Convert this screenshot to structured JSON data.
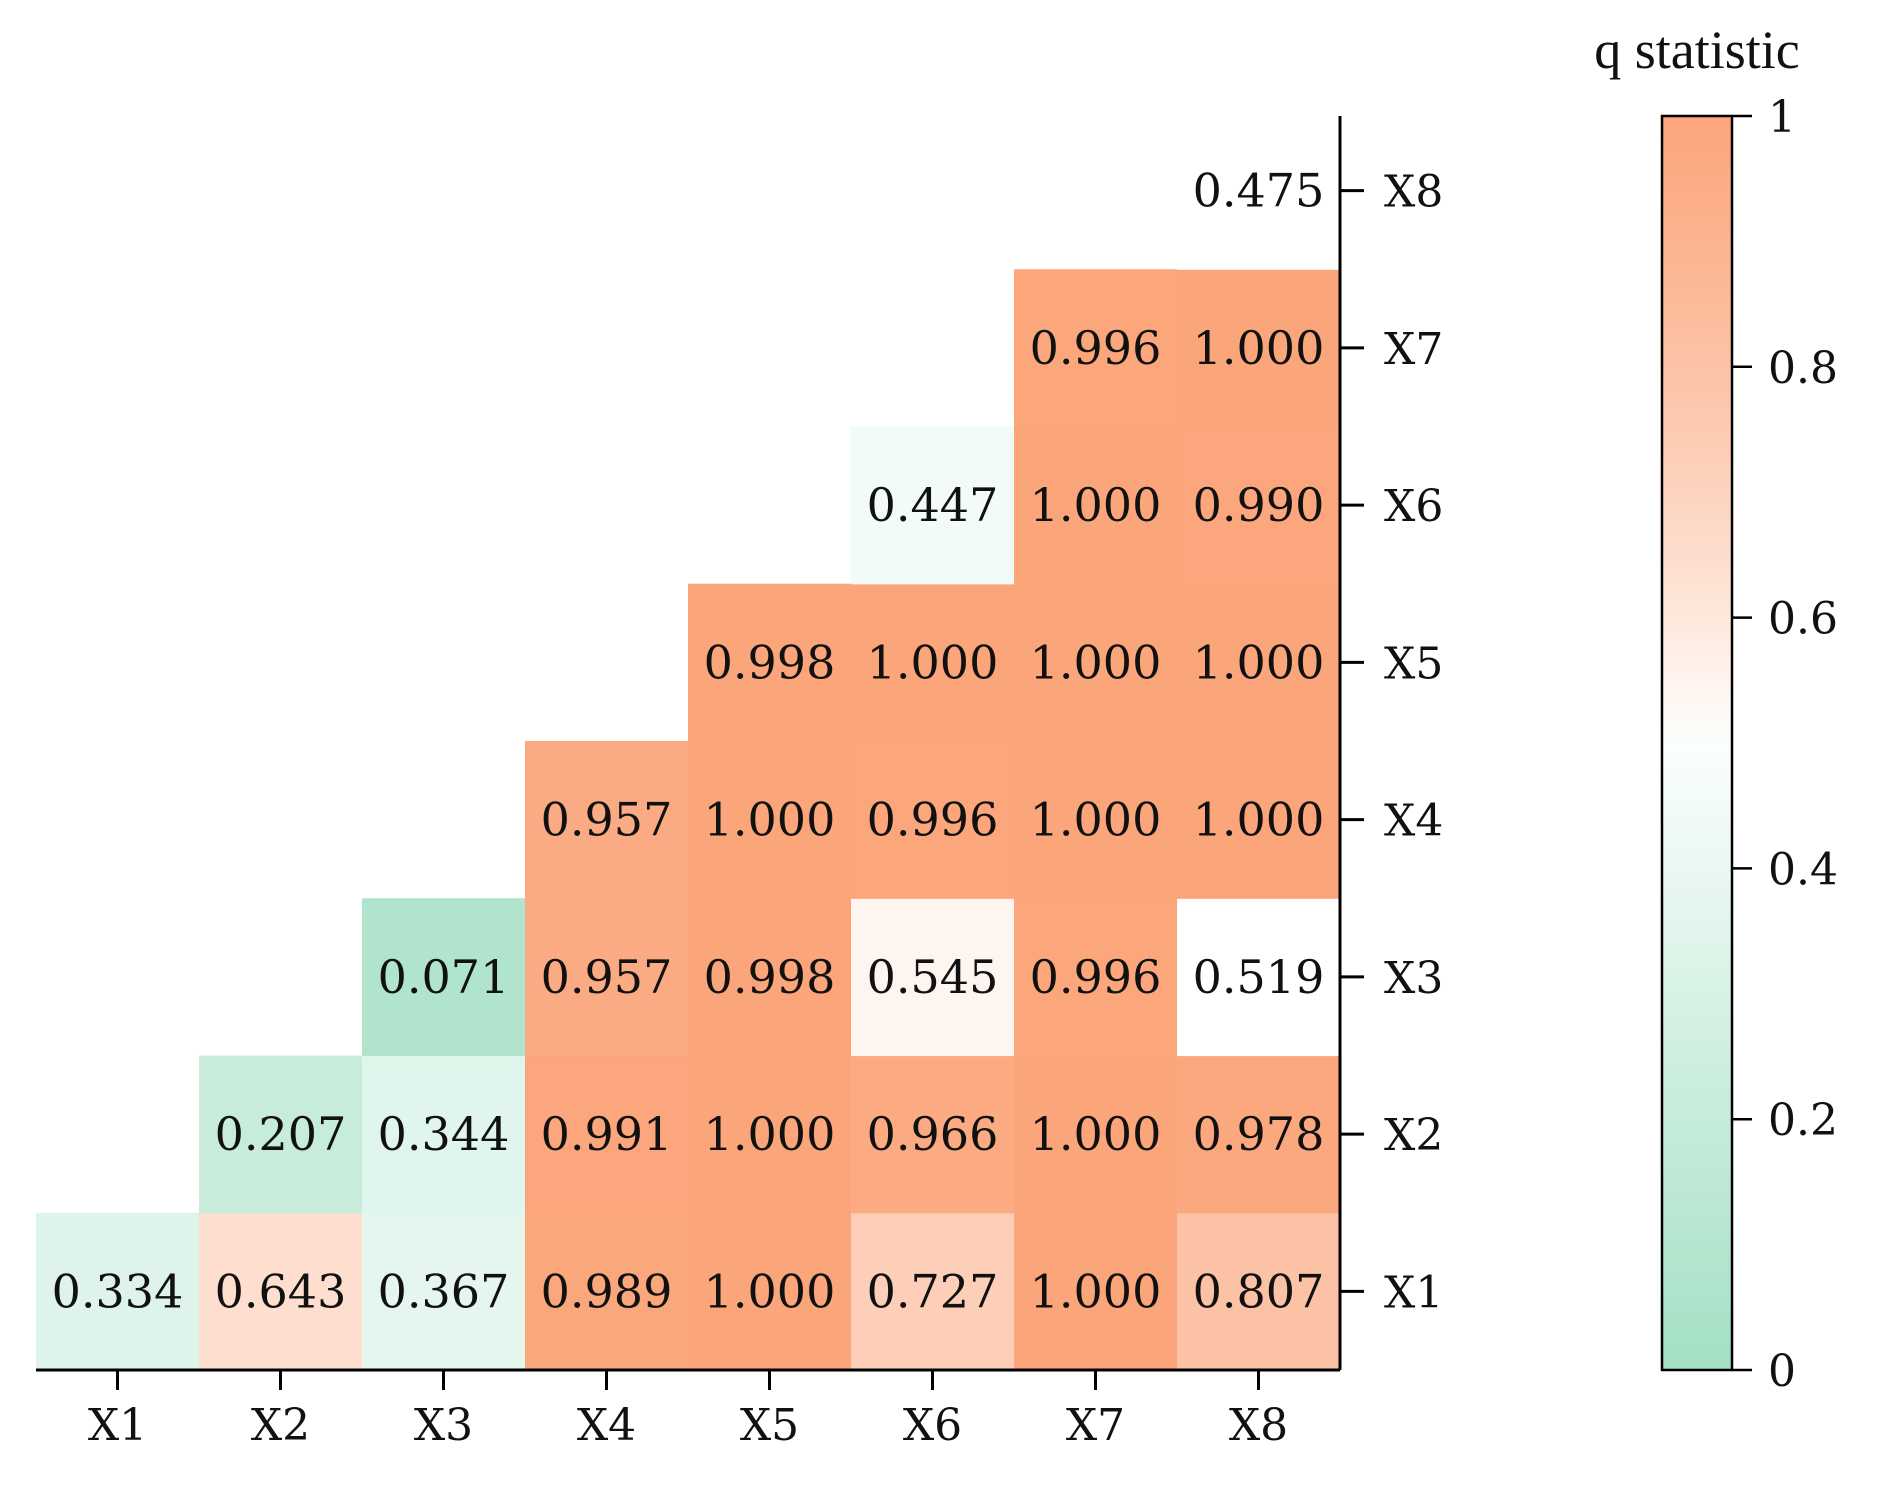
{
  "chart_data": {
    "type": "heatmap",
    "x_categories": [
      "X1",
      "X2",
      "X3",
      "X4",
      "X5",
      "X6",
      "X7",
      "X8"
    ],
    "y_categories": [
      "X1",
      "X2",
      "X3",
      "X4",
      "X5",
      "X6",
      "X7",
      "X8"
    ],
    "cells": [
      {
        "x": "X1",
        "y": "X1",
        "value": 0.334,
        "label": "0.334"
      },
      {
        "x": "X2",
        "y": "X1",
        "value": 0.643,
        "label": "0.643"
      },
      {
        "x": "X3",
        "y": "X1",
        "value": 0.367,
        "label": "0.367"
      },
      {
        "x": "X4",
        "y": "X1",
        "value": 0.989,
        "label": "0.989"
      },
      {
        "x": "X5",
        "y": "X1",
        "value": 1.0,
        "label": "1.000"
      },
      {
        "x": "X6",
        "y": "X1",
        "value": 0.727,
        "label": "0.727"
      },
      {
        "x": "X7",
        "y": "X1",
        "value": 1.0,
        "label": "1.000"
      },
      {
        "x": "X8",
        "y": "X1",
        "value": 0.807,
        "label": "0.807"
      },
      {
        "x": "X2",
        "y": "X2",
        "value": 0.207,
        "label": "0.207"
      },
      {
        "x": "X3",
        "y": "X2",
        "value": 0.344,
        "label": "0.344"
      },
      {
        "x": "X4",
        "y": "X2",
        "value": 0.991,
        "label": "0.991"
      },
      {
        "x": "X5",
        "y": "X2",
        "value": 1.0,
        "label": "1.000"
      },
      {
        "x": "X6",
        "y": "X2",
        "value": 0.966,
        "label": "0.966"
      },
      {
        "x": "X7",
        "y": "X2",
        "value": 1.0,
        "label": "1.000"
      },
      {
        "x": "X8",
        "y": "X2",
        "value": 0.978,
        "label": "0.978"
      },
      {
        "x": "X3",
        "y": "X3",
        "value": 0.071,
        "label": "0.071"
      },
      {
        "x": "X4",
        "y": "X3",
        "value": 0.957,
        "label": "0.957"
      },
      {
        "x": "X5",
        "y": "X3",
        "value": 0.998,
        "label": "0.998"
      },
      {
        "x": "X6",
        "y": "X3",
        "value": 0.545,
        "label": "0.545"
      },
      {
        "x": "X7",
        "y": "X3",
        "value": 0.996,
        "label": "0.996"
      },
      {
        "x": "X8",
        "y": "X3",
        "value": 0.519,
        "label": "0.519"
      },
      {
        "x": "X4",
        "y": "X4",
        "value": 0.957,
        "label": "0.957"
      },
      {
        "x": "X5",
        "y": "X4",
        "value": 1.0,
        "label": "1.000"
      },
      {
        "x": "X6",
        "y": "X4",
        "value": 0.996,
        "label": "0.996"
      },
      {
        "x": "X7",
        "y": "X4",
        "value": 1.0,
        "label": "1.000"
      },
      {
        "x": "X8",
        "y": "X4",
        "value": 1.0,
        "label": "1.000"
      },
      {
        "x": "X5",
        "y": "X5",
        "value": 0.998,
        "label": "0.998"
      },
      {
        "x": "X6",
        "y": "X5",
        "value": 1.0,
        "label": "1.000"
      },
      {
        "x": "X7",
        "y": "X5",
        "value": 1.0,
        "label": "1.000"
      },
      {
        "x": "X8",
        "y": "X5",
        "value": 1.0,
        "label": "1.000"
      },
      {
        "x": "X6",
        "y": "X6",
        "value": 0.447,
        "label": "0.447"
      },
      {
        "x": "X7",
        "y": "X6",
        "value": 1.0,
        "label": "1.000"
      },
      {
        "x": "X8",
        "y": "X6",
        "value": 0.99,
        "label": "0.990"
      },
      {
        "x": "X7",
        "y": "X7",
        "value": 0.996,
        "label": "0.996"
      },
      {
        "x": "X8",
        "y": "X7",
        "value": 1.0,
        "label": "1.000"
      },
      {
        "x": "X8",
        "y": "X8",
        "value": 0.475,
        "label": "0.475",
        "color": "#ffffff"
      }
    ],
    "colorbar": {
      "title": "q statistic",
      "range": [
        0,
        1
      ],
      "ticks": [
        0,
        0.2,
        0.4,
        0.6,
        0.8,
        1
      ],
      "tick_labels": [
        "0",
        "0.2",
        "0.4",
        "0.6",
        "0.8",
        "1"
      ],
      "colors": {
        "low": "#a3e0c4",
        "mid": "#ffffff",
        "high": "#fba57a"
      }
    },
    "grid": false,
    "y_axis_position": "right",
    "legend_position": "right"
  }
}
